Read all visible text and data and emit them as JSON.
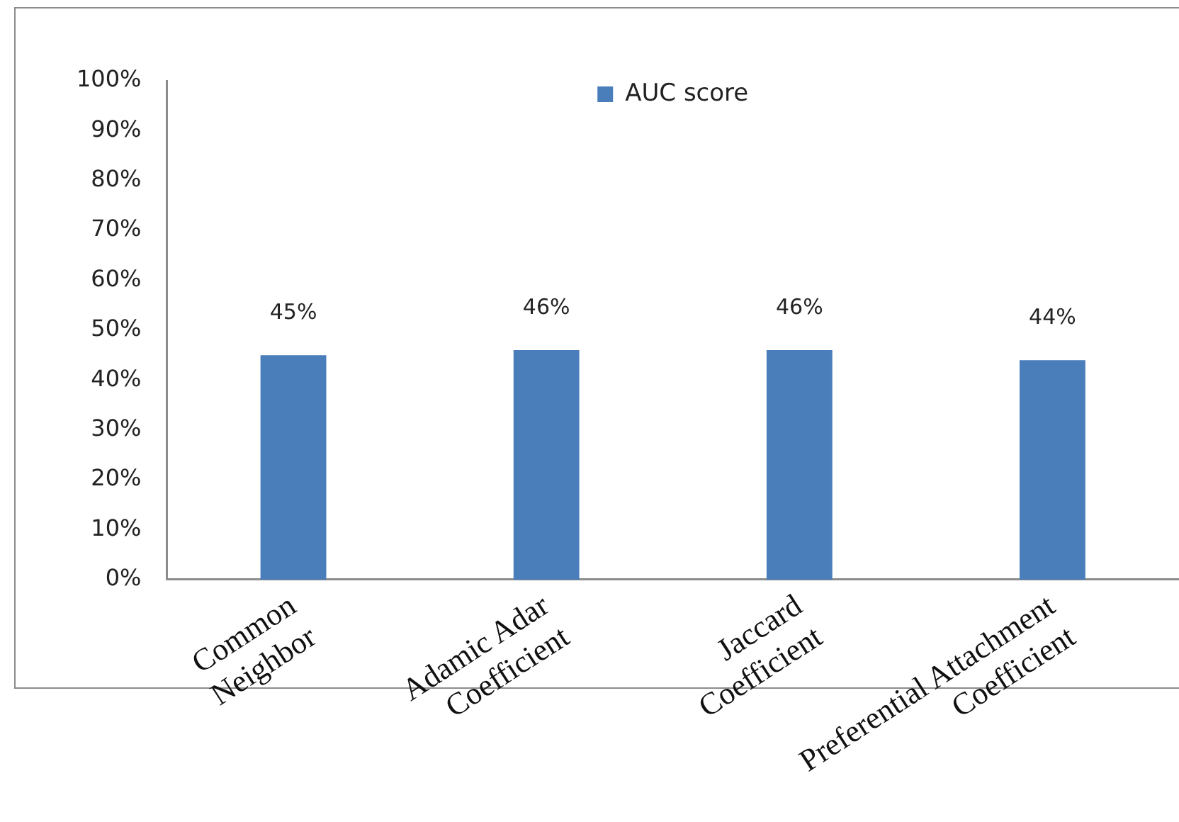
{
  "chart_data": {
    "type": "bar",
    "categories": [
      "Common Neighbor",
      "Adamic Adar Coefficient",
      "Jaccard Coefficient",
      "Preferential Attachment Coefficient"
    ],
    "series": [
      {
        "name": "AUC score",
        "color": "#4a7ebb",
        "values": [
          45,
          46,
          46,
          44
        ],
        "value_labels": [
          "45%",
          "46%",
          "46%",
          "44%"
        ]
      }
    ],
    "ylim": [
      0,
      100
    ],
    "yticks": [
      {
        "value": 0,
        "label": "0%"
      },
      {
        "value": 10,
        "label": "10%"
      },
      {
        "value": 20,
        "label": "20%"
      },
      {
        "value": 30,
        "label": "30%"
      },
      {
        "value": 40,
        "label": "40%"
      },
      {
        "value": 50,
        "label": "50%"
      },
      {
        "value": 60,
        "label": "60%"
      },
      {
        "value": 70,
        "label": "70%"
      },
      {
        "value": 80,
        "label": "80%"
      },
      {
        "value": 90,
        "label": "90%"
      },
      {
        "value": 100,
        "label": "100%"
      }
    ],
    "legend": "top"
  }
}
